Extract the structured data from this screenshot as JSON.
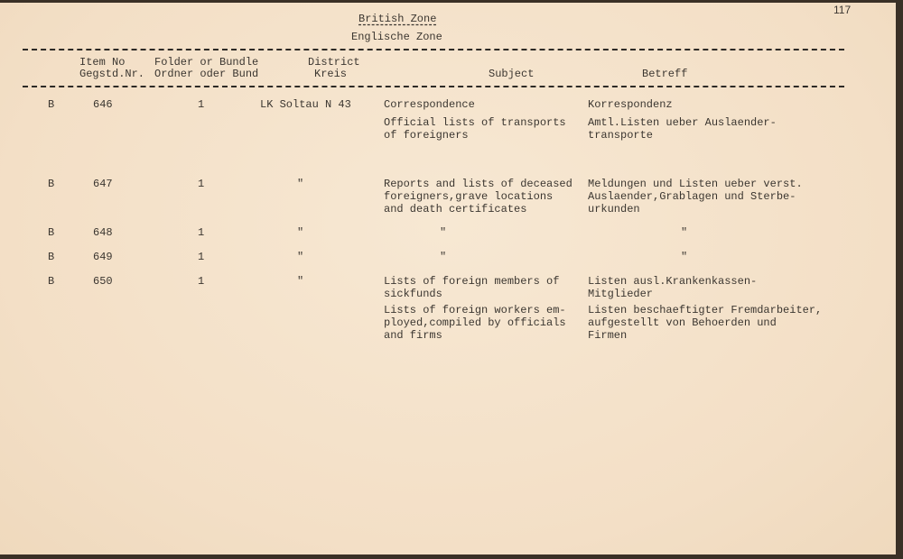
{
  "page_number": "117",
  "title": "British Zone",
  "subtitle": "Englische Zone",
  "headers": {
    "item_en": "Item No",
    "item_de": "Gegstd.Nr.",
    "folder_en": "Folder or Bundle",
    "folder_de": "Ordner oder Bund",
    "district_en": "District",
    "district_de": "Kreis",
    "subject": "Subject",
    "betreff": "Betreff"
  },
  "rows": [
    {
      "zone": "B",
      "item": "646",
      "folder": "1",
      "district": "LK Soltau N 43",
      "subject": [
        "Correspondence",
        "Official lists of transports\nof foreigners"
      ],
      "betreff": [
        "Korrespondenz",
        "Amtl.Listen ueber Auslaender-\ntransporte"
      ]
    },
    {
      "zone": "B",
      "item": "647",
      "folder": "1",
      "district": "\"",
      "subject": [
        "Reports and lists of deceased\nforeigners,grave locations\nand death certificates"
      ],
      "betreff": [
        "Meldungen und Listen ueber verst.\nAuslaender,Grablagen und Sterbe-\nurkunden"
      ]
    },
    {
      "zone": "B",
      "item": "648",
      "folder": "1",
      "district": "\"",
      "subject": [
        "\""
      ],
      "betreff": [
        "\""
      ]
    },
    {
      "zone": "B",
      "item": "649",
      "folder": "1",
      "district": "\"",
      "subject": [
        "\""
      ],
      "betreff": [
        "\""
      ]
    },
    {
      "zone": "B",
      "item": "650",
      "folder": "1",
      "district": "\"",
      "subject": [
        "Lists of foreign members of\nsickfunds",
        "Lists of foreign workers em-\nployed,compiled by officials\nand firms"
      ],
      "betreff": [
        "Listen ausl.Krankenkassen-\nMitglieder",
        "Listen beschaeftigter Fremdarbeiter,\naufgestellt von Behoerden und\nFirmen"
      ]
    }
  ]
}
